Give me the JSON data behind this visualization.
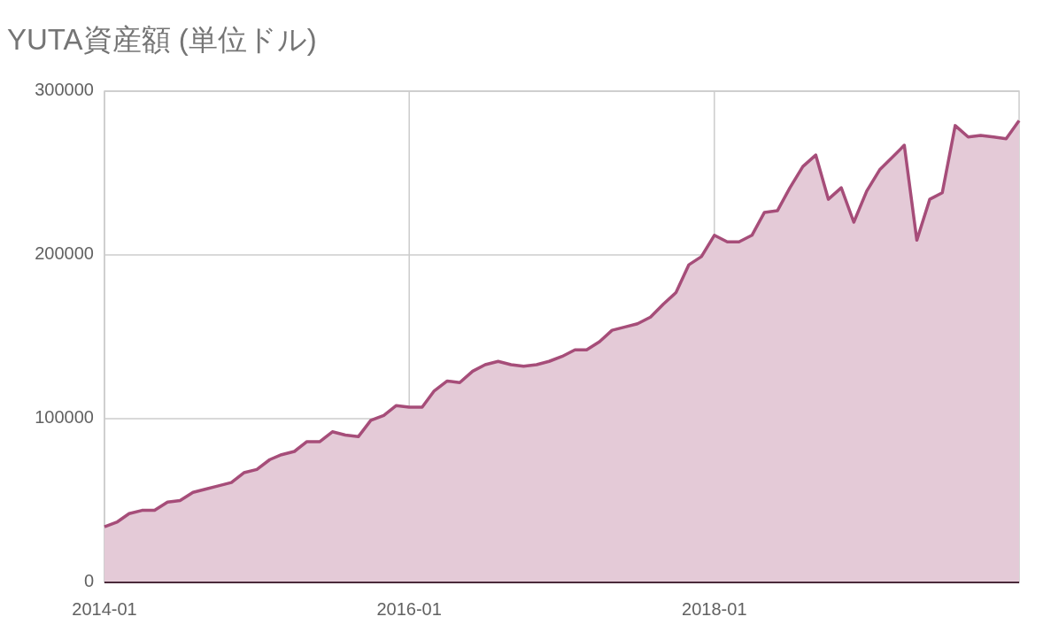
{
  "chart_data": {
    "type": "area",
    "title": "YUTA資産額 (単位ドル)",
    "x": [
      "2014-01",
      "2014-02",
      "2014-03",
      "2014-04",
      "2014-05",
      "2014-06",
      "2014-07",
      "2014-08",
      "2014-09",
      "2014-10",
      "2014-11",
      "2014-12",
      "2015-01",
      "2015-02",
      "2015-03",
      "2015-04",
      "2015-05",
      "2015-06",
      "2015-07",
      "2015-08",
      "2015-09",
      "2015-10",
      "2015-11",
      "2015-12",
      "2016-01",
      "2016-02",
      "2016-03",
      "2016-04",
      "2016-05",
      "2016-06",
      "2016-07",
      "2016-08",
      "2016-09",
      "2016-10",
      "2016-11",
      "2016-12",
      "2017-01",
      "2017-02",
      "2017-03",
      "2017-04",
      "2017-05",
      "2017-06",
      "2017-07",
      "2017-08",
      "2017-09",
      "2017-10",
      "2017-11",
      "2017-12",
      "2018-01",
      "2018-02",
      "2018-03",
      "2018-04",
      "2018-05",
      "2018-06",
      "2018-07",
      "2018-08",
      "2018-09",
      "2018-10",
      "2018-11",
      "2018-12",
      "2019-01",
      "2019-02",
      "2019-03",
      "2019-04",
      "2019-05",
      "2019-06",
      "2019-07",
      "2019-08",
      "2019-09",
      "2019-10",
      "2019-11",
      "2019-12",
      "2020-01"
    ],
    "values": [
      34000,
      37000,
      42000,
      44000,
      44000,
      49000,
      50000,
      55000,
      57000,
      59000,
      61000,
      67000,
      69000,
      75000,
      78000,
      80000,
      86000,
      86000,
      92000,
      90000,
      89000,
      99000,
      102000,
      108000,
      107000,
      107000,
      117000,
      123000,
      122000,
      129000,
      133000,
      135000,
      133000,
      132000,
      133000,
      135000,
      138000,
      142000,
      142000,
      147000,
      154000,
      156000,
      158000,
      162000,
      170000,
      177000,
      194000,
      199000,
      212000,
      208000,
      208000,
      212000,
      226000,
      227000,
      241000,
      254000,
      261000,
      234000,
      241000,
      220000,
      239000,
      252000,
      259000,
      267000,
      209000,
      234000,
      238000,
      279000,
      272000,
      273000,
      272000,
      271000,
      282000
    ],
    "color": "#a64d79",
    "xlim": [
      "2014-01",
      "2020-01"
    ],
    "xticks": [
      "2014-01",
      "2016-01",
      "2018-01"
    ],
    "ylim": [
      0,
      300000
    ],
    "yticks": [
      0,
      100000,
      200000,
      300000
    ],
    "grid": true
  }
}
